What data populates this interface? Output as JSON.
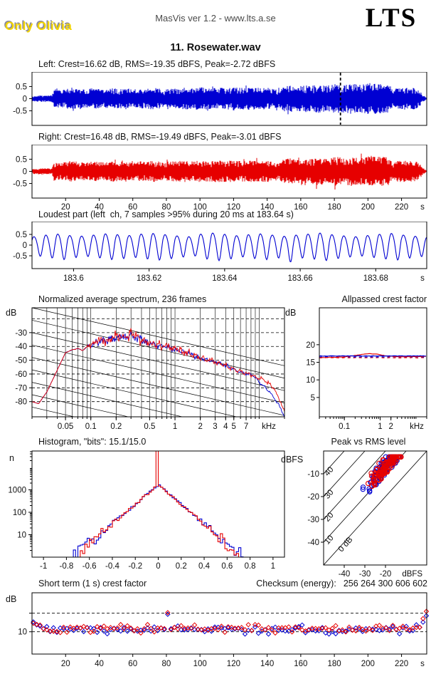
{
  "header": {
    "watermark": "Only Olivia",
    "app_line": "MasVis ver 1.2 - www.lts.a.se",
    "logo": "LTS",
    "track_title": "11. Rosewater.wav"
  },
  "checksum": {
    "label": "Checksum (energy):",
    "value": "256 264 300 606 602"
  },
  "colors": {
    "left_channel": "#0000d2",
    "right_channel": "#e60000",
    "axis": "#000000",
    "watermark_fill": "#f2d400",
    "watermark_shadow": "#8a8a9c"
  },
  "chart_data": [
    {
      "id": "left_waveform",
      "type": "waveform",
      "channel": "left",
      "title": "Left: Crest=16.62 dB, RMS=-19.35 dBFS, Peak=-2.72 dBFS",
      "stats": {
        "crest_db": 16.62,
        "rms_dbfs": -19.35,
        "peak_dbfs": -2.72
      },
      "ylim": [
        -1.1,
        1.1
      ],
      "yticks": [
        "0.5",
        "0",
        "-0.5"
      ],
      "ytick_values": [
        0.5,
        0,
        -0.5
      ],
      "xlim": [
        0,
        235
      ],
      "cursor_s": 183.64,
      "envelope": [
        [
          0,
          0.09
        ],
        [
          2,
          0.13
        ],
        [
          12,
          0.14
        ],
        [
          13,
          0.4
        ],
        [
          16,
          0.36
        ],
        [
          20,
          0.4
        ],
        [
          24,
          0.46
        ],
        [
          28,
          0.4
        ],
        [
          32,
          0.36
        ],
        [
          36,
          0.44
        ],
        [
          40,
          0.4
        ],
        [
          44,
          0.38
        ],
        [
          48,
          0.44
        ],
        [
          52,
          0.4
        ],
        [
          56,
          0.44
        ],
        [
          60,
          0.38
        ],
        [
          64,
          0.42
        ],
        [
          68,
          0.4
        ],
        [
          72,
          0.46
        ],
        [
          76,
          0.42
        ],
        [
          79,
          0.32
        ],
        [
          81,
          0.44
        ],
        [
          85,
          0.42
        ],
        [
          90,
          0.46
        ],
        [
          95,
          0.42
        ],
        [
          100,
          0.47
        ],
        [
          105,
          0.43
        ],
        [
          110,
          0.46
        ],
        [
          115,
          0.44
        ],
        [
          120,
          0.48
        ],
        [
          125,
          0.44
        ],
        [
          130,
          0.47
        ],
        [
          135,
          0.44
        ],
        [
          140,
          0.46
        ],
        [
          144,
          0.4
        ],
        [
          147,
          0.36
        ],
        [
          150,
          0.52
        ],
        [
          154,
          0.56
        ],
        [
          158,
          0.5
        ],
        [
          162,
          0.56
        ],
        [
          166,
          0.52
        ],
        [
          170,
          0.6
        ],
        [
          174,
          0.54
        ],
        [
          178,
          0.58
        ],
        [
          182,
          0.62
        ],
        [
          186,
          0.56
        ],
        [
          190,
          0.63
        ],
        [
          194,
          0.58
        ],
        [
          198,
          0.6
        ],
        [
          202,
          0.66
        ],
        [
          206,
          0.6
        ],
        [
          210,
          0.63
        ],
        [
          213,
          0.56
        ],
        [
          215,
          0.3
        ],
        [
          217,
          0.44
        ],
        [
          220,
          0.48
        ],
        [
          223,
          0.44
        ],
        [
          226,
          0.47
        ],
        [
          229,
          0.4
        ],
        [
          231,
          0.3
        ],
        [
          233,
          0.14
        ],
        [
          235,
          0.02
        ]
      ]
    },
    {
      "id": "right_waveform",
      "type": "waveform",
      "channel": "right",
      "title": "Right: Crest=16.48 dB, RMS=-19.49 dBFS, Peak=-3.01 dBFS",
      "stats": {
        "crest_db": 16.48,
        "rms_dbfs": -19.49,
        "peak_dbfs": -3.01
      },
      "ylim": [
        -1.1,
        1.1
      ],
      "yticks": [
        "0.5",
        "0",
        "-0.5"
      ],
      "ytick_values": [
        0.5,
        0,
        -0.5
      ],
      "xlim": [
        0,
        235
      ],
      "xticks": [
        "20",
        "40",
        "60",
        "80",
        "100",
        "120",
        "140",
        "160",
        "180",
        "200",
        "220"
      ],
      "xtick_values": [
        20,
        40,
        60,
        80,
        100,
        120,
        140,
        160,
        180,
        200,
        220
      ],
      "xunit": "s",
      "envelope_scale": 0.97
    },
    {
      "id": "loudest_part",
      "type": "line",
      "title": "Loudest part (left  ch, 7 samples >95% during 20 ms at 183.64 s)",
      "ylim": [
        -1.1,
        1.1
      ],
      "yticks": [
        "0.5",
        "0",
        "-0.5"
      ],
      "ytick_values": [
        0.5,
        0,
        -0.5
      ],
      "t_start": 183.589,
      "duration": 0.1045,
      "frequency_hz": 317,
      "xticks": [
        "183.6",
        "183.62",
        "183.64",
        "183.66",
        "183.68"
      ],
      "xtick_values": [
        183.6,
        183.62,
        183.64,
        183.66,
        183.68
      ],
      "xunit": "s",
      "pos_amps": [
        0.42,
        0.5,
        0.55,
        0.48,
        0.45,
        0.5,
        0.56,
        0.52,
        0.48,
        0.55,
        0.58,
        0.52,
        0.46,
        0.42,
        0.55,
        0.6,
        0.54,
        0.47,
        0.52,
        0.56,
        0.5,
        0.44,
        0.5,
        0.55,
        0.6,
        0.52,
        0.46,
        0.42,
        0.48,
        0.54,
        0.58,
        0.5,
        0.44,
        0.4
      ],
      "neg_amps": [
        0.45,
        0.52,
        0.58,
        0.5,
        0.46,
        0.52,
        0.58,
        0.54,
        0.5,
        0.56,
        0.6,
        0.54,
        0.48,
        0.44,
        0.56,
        0.62,
        0.55,
        0.48,
        0.54,
        0.58,
        0.52,
        0.68,
        0.52,
        0.56,
        0.62,
        0.54,
        0.48,
        0.44,
        0.5,
        0.56,
        0.6,
        0.52,
        0.46,
        0.42
      ]
    },
    {
      "id": "spectrum",
      "type": "line",
      "title": "Normalized average spectrum, 236 frames",
      "frames": 236,
      "ylabel": "dB",
      "yticks": [
        "-30",
        "-40",
        "-50",
        "-60",
        "-70",
        "-80"
      ],
      "ytick_values": [
        -30,
        -40,
        -50,
        -60,
        -70,
        -80
      ],
      "ylim": [
        -91,
        -12
      ],
      "xlim": [
        0.02,
        20
      ],
      "xticks": [
        "0.05",
        "0.1",
        "0.2",
        "0.5",
        "1",
        "2",
        "3",
        "4",
        "5",
        "7"
      ],
      "xtick_values": [
        0.05,
        0.1,
        0.2,
        0.5,
        1,
        2,
        3,
        4,
        5,
        7
      ],
      "xunit": "kHz",
      "grid": {
        "h_dashed_from": -20,
        "h_dashed_to": -80,
        "h_dashed_step": 10,
        "diag_drop_db": 42,
        "diag_step_db": 9
      },
      "baseline": [
        [
          0.02,
          -80
        ],
        [
          0.024,
          -81.5
        ],
        [
          0.03,
          -73
        ],
        [
          0.04,
          -57
        ],
        [
          0.05,
          -44.5
        ],
        [
          0.06,
          -42.5
        ],
        [
          0.07,
          -41.5
        ],
        [
          0.08,
          -43
        ],
        [
          0.09,
          -40.5
        ],
        [
          0.1,
          -39
        ],
        [
          0.12,
          -36.5
        ],
        [
          0.15,
          -35
        ],
        [
          0.2,
          -34
        ],
        [
          0.25,
          -33
        ],
        [
          0.3,
          -31.8
        ],
        [
          0.35,
          -33
        ],
        [
          0.4,
          -35
        ],
        [
          0.5,
          -37.5
        ],
        [
          0.7,
          -39.5
        ],
        [
          0.85,
          -40.5
        ],
        [
          1,
          -42
        ],
        [
          1.3,
          -44
        ],
        [
          1.6,
          -46
        ],
        [
          2,
          -48.5
        ],
        [
          2.5,
          -50
        ],
        [
          3,
          -51.5
        ],
        [
          4,
          -54
        ],
        [
          5,
          -56.5
        ],
        [
          6,
          -58.5
        ],
        [
          7,
          -59.5
        ],
        [
          8,
          -60.5
        ],
        [
          9,
          -62
        ]
      ],
      "tail_blue": [
        [
          10,
          -66
        ],
        [
          12,
          -70
        ],
        [
          15,
          -77
        ],
        [
          18,
          -85
        ],
        [
          20,
          -91
        ]
      ],
      "tail_red": [
        [
          10,
          -63
        ],
        [
          12,
          -65
        ],
        [
          15,
          -70.5
        ],
        [
          18,
          -80
        ],
        [
          20,
          -88
        ]
      ],
      "osc_amp": [
        [
          0.02,
          0.2
        ],
        [
          0.085,
          0.3
        ],
        [
          0.1,
          5
        ],
        [
          0.45,
          5.5
        ],
        [
          0.6,
          4
        ],
        [
          1,
          3.5
        ],
        [
          2,
          3
        ],
        [
          3,
          2.4
        ],
        [
          8,
          2
        ],
        [
          20,
          1.5
        ]
      ]
    },
    {
      "id": "allpassed_crest",
      "type": "line",
      "title": "Allpassed crest factor",
      "ylabel": "dB",
      "yticks": [
        "5",
        "10",
        "15",
        "20"
      ],
      "ytick_values": [
        5,
        10,
        15,
        20
      ],
      "ylim": [
        -0.5,
        30.5
      ],
      "xlim": [
        0.02,
        20
      ],
      "xticks": [
        "0.1",
        "1",
        "2"
      ],
      "xtick_values": [
        0.1,
        1,
        2
      ],
      "xunit": "kHz",
      "series": [
        {
          "name": "left_solid",
          "style": "solid",
          "value": 16.8
        },
        {
          "name": "right_solid",
          "style": "solid",
          "anchors": [
            [
              0.02,
              16.35
            ],
            [
              0.1,
              16.5
            ],
            [
              0.25,
              17.1
            ],
            [
              0.5,
              17.45
            ],
            [
              0.8,
              17.3
            ],
            [
              1.5,
              16.8
            ],
            [
              3,
              16.6
            ],
            [
              20,
              16.65
            ]
          ]
        },
        {
          "name": "left_dashed",
          "style": "dashed",
          "value": 16.55
        },
        {
          "name": "right_dashed",
          "style": "dashed",
          "value": 16.3
        }
      ]
    },
    {
      "id": "histogram",
      "type": "bar",
      "title": "Histogram, \"bits\": 15.1/15.0",
      "bits_left": 15.1,
      "bits_right": 15.0,
      "ylabel": "n",
      "yticks": [
        "10",
        "100",
        "1000"
      ],
      "ytick_log_values": [
        1,
        2,
        3
      ],
      "xticks": [
        "-1",
        "-0.8",
        "-0.6",
        "-0.4",
        "-0.2",
        "0",
        "0.2",
        "0.4",
        "0.6",
        "0.8",
        "1"
      ],
      "xtick_values": [
        -1,
        -0.8,
        -0.6,
        -0.4,
        -0.2,
        0,
        0.2,
        0.4,
        0.6,
        0.8,
        1
      ],
      "xlim": [
        -1.1,
        1.1
      ],
      "peak_log_count": 3.22,
      "log_slope_per_unit": 4.35,
      "blue_extent": 0.745,
      "red_extent": 0.695,
      "bin_width": 0.02,
      "red_center_spike": true
    },
    {
      "id": "peak_vs_rms",
      "type": "scatter",
      "title": "Peak vs RMS level",
      "ylabel": "dBFS",
      "xlabel": "dBFS",
      "yticks": [
        "-10",
        "-20",
        "-30",
        "-40"
      ],
      "ytick_values": [
        -10,
        -20,
        -30,
        -40
      ],
      "xticks": [
        "-40",
        "-30",
        "-20"
      ],
      "xtick_values": [
        -40,
        -30,
        -20
      ],
      "xlim": [
        -50,
        0
      ],
      "ylim": [
        -50,
        0
      ],
      "iso_lines_db": [
        0,
        10,
        20,
        30,
        40
      ],
      "iso_labels": [
        "0 dB",
        "10",
        "20",
        "30",
        "40"
      ],
      "cluster": {
        "n_per_channel": 120,
        "rms_mean": -19.5,
        "rms_sd": 4.2,
        "crest_mean": 13,
        "crest_sd": 2,
        "crest_min": 9.8,
        "crest_max": 20,
        "rms_min": -33,
        "rms_max": -12.5,
        "peak_max": -2.6
      }
    },
    {
      "id": "short_term_crest",
      "type": "scatter",
      "title": "Short term (1 s) crest factor",
      "ylabel": "dB",
      "yticks": [
        "10"
      ],
      "ytick_values": [
        10
      ],
      "dashed_levels": [
        10,
        20
      ],
      "ylim": [
        -2,
        31
      ],
      "xlim": [
        0,
        235
      ],
      "xticks": [
        "20",
        "40",
        "60",
        "80",
        "100",
        "120",
        "140",
        "160",
        "180",
        "200",
        "220"
      ],
      "xtick_values": [
        20,
        40,
        60,
        80,
        100,
        120,
        140,
        160,
        180,
        200,
        220
      ],
      "xunit": "s",
      "base_red": 11.7,
      "base_blue": 11.2,
      "sd": 1.1,
      "spike": {
        "t": 80,
        "red": 20.3,
        "blue": 19.4
      },
      "start_boost": {
        "until_s": 10,
        "per_s": 0.35
      },
      "end_boost": {
        "from_s": 226,
        "per_s": 0.55
      }
    }
  ]
}
